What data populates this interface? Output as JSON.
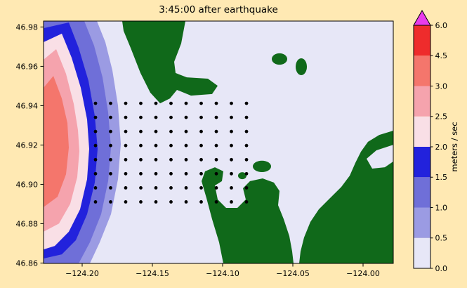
{
  "figure": {
    "background": "#ffe9b3",
    "title": "3:45:00 after earthquake"
  },
  "chart_data": {
    "type": "filled_contour_map",
    "title": "3:45:00 after earthquake",
    "xlim": [
      -124.2275,
      -123.9785
    ],
    "ylim": [
      46.8598,
      46.983
    ],
    "xticks": [
      -124.2,
      -124.15,
      -124.1,
      -124.05,
      -124.0
    ],
    "xtick_labels": [
      "−124.20",
      "−124.15",
      "−124.10",
      "−124.05",
      "−124.00"
    ],
    "yticks": [
      46.86,
      46.88,
      46.9,
      46.92,
      46.94,
      46.96,
      46.98
    ],
    "ytick_labels": [
      "46.86",
      "46.88",
      "46.90",
      "46.92",
      "46.94",
      "46.96",
      "46.98"
    ],
    "water_color": "#e7e7f7",
    "land_color": "#10691a",
    "dot_color": "#000000",
    "speed_bands": [
      {
        "name": "0.5-1.0",
        "color": "#9b9be3",
        "polygon": [
          [
            -124.2275,
            46.983
          ],
          [
            -124.1895,
            46.983
          ],
          [
            -124.1835,
            46.9723
          ],
          [
            -124.1785,
            46.958
          ],
          [
            -124.1745,
            46.9401
          ],
          [
            -124.1725,
            46.9205
          ],
          [
            -124.1745,
            46.9026
          ],
          [
            -124.1795,
            46.8848
          ],
          [
            -124.1875,
            46.8705
          ],
          [
            -124.1945,
            46.8598
          ],
          [
            -124.2275,
            46.8598
          ]
        ]
      },
      {
        "name": "1.0-1.5",
        "color": "#6f6fd8",
        "polygon": [
          [
            -124.2275,
            46.983
          ],
          [
            -124.1985,
            46.983
          ],
          [
            -124.1915,
            46.9705
          ],
          [
            -124.1855,
            46.9544
          ],
          [
            -124.1815,
            46.9366
          ],
          [
            -124.1795,
            46.9187
          ],
          [
            -124.1815,
            46.9016
          ],
          [
            -124.1865,
            46.8848
          ],
          [
            -124.1945,
            46.8705
          ],
          [
            -124.2025,
            46.8598
          ],
          [
            -124.2275,
            46.8598
          ]
        ]
      },
      {
        "name": "1.5-2.0",
        "color": "#2222dc",
        "polygon": [
          [
            -124.2275,
            46.9794
          ],
          [
            -124.2095,
            46.9823
          ],
          [
            -124.2025,
            46.9694
          ],
          [
            -124.1955,
            46.9526
          ],
          [
            -124.191,
            46.9348
          ],
          [
            -124.189,
            46.918
          ],
          [
            -124.191,
            46.9009
          ],
          [
            -124.1965,
            46.8848
          ],
          [
            -124.2045,
            46.8716
          ],
          [
            -124.2145,
            46.8644
          ],
          [
            -124.2275,
            46.8623
          ]
        ]
      },
      {
        "name": "2.0-2.5",
        "color": "#f9dfe6",
        "polygon": [
          [
            -124.2275,
            46.9723
          ],
          [
            -124.2145,
            46.9766
          ],
          [
            -124.2075,
            46.9644
          ],
          [
            -124.201,
            46.9491
          ],
          [
            -124.1965,
            46.933
          ],
          [
            -124.195,
            46.918
          ],
          [
            -124.1965,
            46.9026
          ],
          [
            -124.2015,
            46.8873
          ],
          [
            -124.2095,
            46.8759
          ],
          [
            -124.2195,
            46.8687
          ],
          [
            -124.2275,
            46.8669
          ]
        ]
      },
      {
        "name": "2.5-3.0",
        "color": "#f5a3ad",
        "polygon": [
          [
            -124.2275,
            46.9634
          ],
          [
            -124.2185,
            46.9687
          ],
          [
            -124.2115,
            46.9562
          ],
          [
            -124.206,
            46.9409
          ],
          [
            -124.203,
            46.9276
          ],
          [
            -124.202,
            46.9169
          ],
          [
            -124.2035,
            46.9037
          ],
          [
            -124.2085,
            46.8901
          ],
          [
            -124.2165,
            46.8801
          ],
          [
            -124.2275,
            46.8759
          ]
        ]
      },
      {
        "name": "3.0-4.5",
        "color": "#f4766c",
        "polygon": [
          [
            -124.2275,
            46.9491
          ],
          [
            -124.2205,
            46.9551
          ],
          [
            -124.2145,
            46.9437
          ],
          [
            -124.2105,
            46.9312
          ],
          [
            -124.2095,
            46.9187
          ],
          [
            -124.2115,
            46.9051
          ],
          [
            -124.2175,
            46.8937
          ],
          [
            -124.2275,
            46.8884
          ]
        ]
      }
    ],
    "land": [
      {
        "name": "north-peninsula",
        "polygon": [
          [
            -124.1715,
            46.983
          ],
          [
            -124.1265,
            46.983
          ],
          [
            -124.1295,
            46.9716
          ],
          [
            -124.1345,
            46.9623
          ],
          [
            -124.1335,
            46.9566
          ],
          [
            -124.1255,
            46.9544
          ],
          [
            -124.1105,
            46.9537
          ],
          [
            -124.1035,
            46.9501
          ],
          [
            -124.1075,
            46.9459
          ],
          [
            -124.1225,
            46.9451
          ],
          [
            -124.1325,
            46.948
          ],
          [
            -124.1375,
            46.9437
          ],
          [
            -124.1445,
            46.9412
          ],
          [
            -124.1515,
            46.9466
          ],
          [
            -124.1585,
            46.9566
          ],
          [
            -124.1655,
            46.9694
          ],
          [
            -124.1705,
            46.978
          ]
        ]
      },
      {
        "name": "east-shore",
        "polygon": [
          [
            -123.9785,
            46.9273
          ],
          [
            -123.9885,
            46.9251
          ],
          [
            -123.9965,
            46.9216
          ],
          [
            -124.0015,
            46.9166
          ],
          [
            -124.0055,
            46.9109
          ],
          [
            -124.0095,
            46.9044
          ],
          [
            -124.0155,
            46.8987
          ],
          [
            -124.0235,
            46.893
          ],
          [
            -124.0315,
            46.8873
          ],
          [
            -124.0375,
            46.8809
          ],
          [
            -124.042,
            46.873
          ],
          [
            -124.0445,
            46.8659
          ],
          [
            -124.0455,
            46.8598
          ],
          [
            -123.9785,
            46.8598
          ]
        ]
      },
      {
        "name": "south-shore",
        "polygon": [
          [
            -124.0995,
            46.8598
          ],
          [
            -124.1025,
            46.8705
          ],
          [
            -124.1075,
            46.8823
          ],
          [
            -124.1115,
            46.893
          ],
          [
            -124.115,
            46.9016
          ],
          [
            -124.1125,
            46.9066
          ],
          [
            -124.1055,
            46.9087
          ],
          [
            -124.0995,
            46.9066
          ],
          [
            -124.1005,
            46.9016
          ],
          [
            -124.1055,
            46.8994
          ],
          [
            -124.1035,
            46.8923
          ],
          [
            -124.0975,
            46.888
          ],
          [
            -124.0895,
            46.888
          ],
          [
            -124.0835,
            46.8923
          ],
          [
            -124.0855,
            46.898
          ],
          [
            -124.0805,
            46.9016
          ],
          [
            -124.0715,
            46.903
          ],
          [
            -124.0635,
            46.9009
          ],
          [
            -124.0595,
            46.8966
          ],
          [
            -124.0605,
            46.8894
          ],
          [
            -124.0565,
            46.8823
          ],
          [
            -124.0525,
            46.8737
          ],
          [
            -124.0505,
            46.8659
          ],
          [
            -124.0495,
            46.8598
          ]
        ]
      }
    ],
    "water_patches": [
      {
        "name": "east-inlet",
        "polygon": [
          [
            -123.9785,
            46.9201
          ],
          [
            -123.9905,
            46.9173
          ],
          [
            -123.9975,
            46.913
          ],
          [
            -123.9935,
            46.908
          ],
          [
            -123.9845,
            46.9087
          ],
          [
            -123.9785,
            46.9116
          ]
        ]
      }
    ],
    "islands": [
      {
        "lon": -124.0595,
        "lat": 46.9637,
        "rlon": 0.0055,
        "rlat": 0.0029
      },
      {
        "lon": -124.044,
        "lat": 46.9598,
        "rlon": 0.004,
        "rlat": 0.0043
      },
      {
        "lon": -124.072,
        "lat": 46.9091,
        "rlon": 0.0065,
        "rlat": 0.0029
      },
      {
        "lon": -124.086,
        "lat": 46.9044,
        "rlon": 0.003,
        "rlat": 0.0018
      }
    ],
    "gauges": {
      "lon_start": -124.1905,
      "lon_step": 0.01075,
      "n_lon": 11,
      "lat_start": 46.9412,
      "lat_step": 0.00716,
      "n_lat": 8
    },
    "colorbar": {
      "label": "meters / sec",
      "boundaries": [
        0.0,
        0.5,
        1.0,
        1.5,
        2.0,
        2.5,
        3.0,
        4.5,
        6.0
      ],
      "tick_labels": [
        "0.0",
        "0.5",
        "1.0",
        "1.5",
        "2.0",
        "2.5",
        "3.0",
        "4.5",
        "6.0"
      ],
      "colors": [
        "#e7e7f7",
        "#9b9be3",
        "#6f6fd8",
        "#2222dc",
        "#f9dfe6",
        "#f5a3ad",
        "#f4766c",
        "#ee2c2c"
      ],
      "over_color": "#e93cec"
    }
  }
}
